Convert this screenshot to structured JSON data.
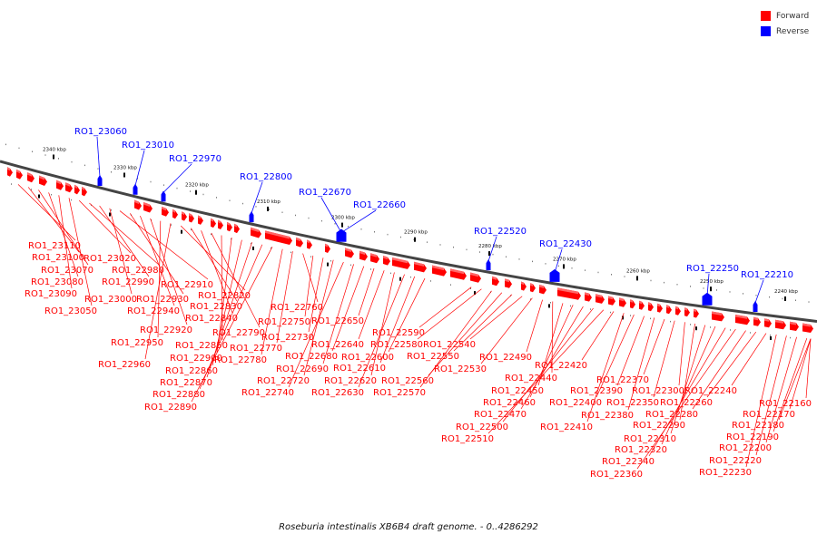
{
  "legend": {
    "forward_label": "Forward",
    "reverse_label": "Reverse",
    "forward_color": "#ff0000",
    "reverse_color": "#0000ff"
  },
  "caption": "Roseburia intestinalis XB6B4 draft genome. - 0..4286292",
  "ticks": [
    "2340 kbp",
    "2330 kbp",
    "2320 kbp",
    "2310 kbp",
    "2300 kbp",
    "2290 kbp",
    "2280 kbp",
    "2270 kbp",
    "2260 kbp",
    "2250 kbp",
    "2240 kbp"
  ],
  "reverse_genes": [
    "RO1_23060",
    "RO1_23010",
    "RO1_22970",
    "RO1_22800",
    "RO1_22670",
    "RO1_22660",
    "RO1_22520",
    "RO1_22430",
    "RO1_22250",
    "RO1_22210"
  ],
  "forward_genes": [
    "RO1_23110",
    "RO1_23100",
    "RO1_23070",
    "RO1_23080",
    "RO1_23090",
    "RO1_23050",
    "RO1_23020",
    "RO1_22980",
    "RO1_22990",
    "RO1_23000",
    "RO1_22910",
    "RO1_22930",
    "RO1_22940",
    "RO1_22920",
    "RO1_22950",
    "RO1_22960",
    "RO1_22820",
    "RO1_22830",
    "RO1_22840",
    "RO1_22790",
    "RO1_22850",
    "RO1_22900",
    "RO1_22860",
    "RO1_22870",
    "RO1_22880",
    "RO1_22890",
    "RO1_22780",
    "RO1_22770",
    "RO1_22760",
    "RO1_22750",
    "RO1_22730",
    "RO1_22720",
    "RO1_22740",
    "RO1_22690",
    "RO1_22680",
    "RO1_22650",
    "RO1_22640",
    "RO1_22620",
    "RO1_22630",
    "RO1_22610",
    "RO1_22600",
    "RO1_22590",
    "RO1_22580",
    "RO1_22570",
    "RO1_22560",
    "RO1_22550",
    "RO1_22540",
    "RO1_22530",
    "RO1_22490",
    "RO1_22440",
    "RO1_22450",
    "RO1_22460",
    "RO1_22470",
    "RO1_22500",
    "RO1_22510",
    "RO1_22420",
    "RO1_22410",
    "RO1_22400",
    "RO1_22390",
    "RO1_22380",
    "RO1_22370",
    "RO1_22350",
    "RO1_22300",
    "RO1_22290",
    "RO1_22310",
    "RO1_22320",
    "RO1_22340",
    "RO1_22360",
    "RO1_22280",
    "RO1_22260",
    "RO1_22240",
    "RO1_22230",
    "RO1_22220",
    "RO1_22200",
    "RO1_22190",
    "RO1_22180",
    "RO1_22170",
    "RO1_22160"
  ]
}
